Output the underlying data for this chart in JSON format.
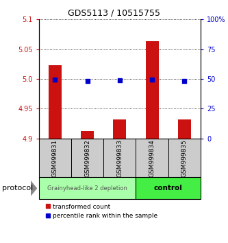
{
  "title": "GDS5113 / 10515755",
  "samples": [
    "GSM999831",
    "GSM999832",
    "GSM999833",
    "GSM999834",
    "GSM999835"
  ],
  "bar_values": [
    5.023,
    4.912,
    4.932,
    5.063,
    4.932
  ],
  "bar_base": 4.9,
  "blue_values": [
    49.5,
    48.5,
    49.0,
    49.5,
    48.5
  ],
  "ylim_left": [
    4.9,
    5.1
  ],
  "ylim_right": [
    0,
    100
  ],
  "yticks_left": [
    4.9,
    4.95,
    5.0,
    5.05,
    5.1
  ],
  "yticks_right": [
    0,
    25,
    50,
    75,
    100
  ],
  "ytick_labels_right": [
    "0",
    "25",
    "50",
    "75",
    "100%"
  ],
  "bar_color": "#cc1111",
  "blue_color": "#0000cc",
  "group1_label": "Grainyhead-like 2 depletion",
  "group2_label": "control",
  "group1_color": "#aaffaa",
  "group2_color": "#44ee44",
  "protocol_label": "protocol",
  "legend_red_label": "transformed count",
  "legend_blue_label": "percentile rank within the sample",
  "sample_box_color": "#cccccc",
  "arrow_color": "#888888"
}
